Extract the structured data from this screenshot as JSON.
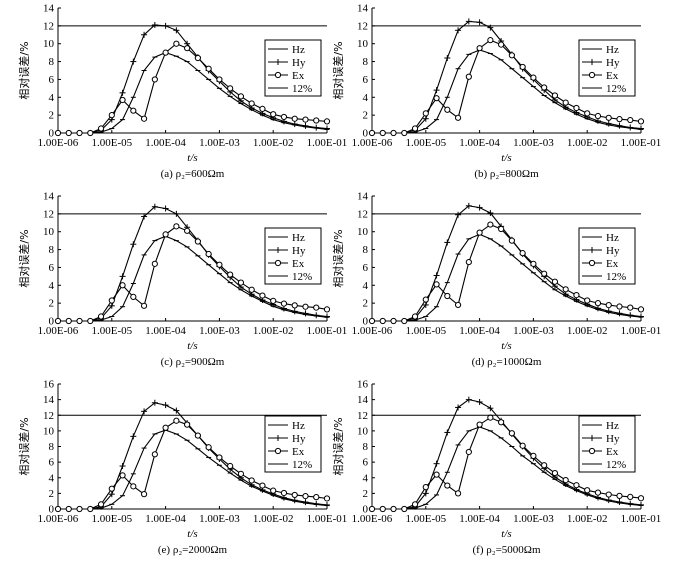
{
  "legend_labels": [
    "Hz",
    "Hy",
    "Ex",
    "12%"
  ],
  "chart_data": [
    {
      "type": "line",
      "panel_label": "(a) ρ₂=600Ωm",
      "xlabel": "t/s",
      "ylabel": "相对误差/%",
      "x_ticks": [
        "1.00E-06",
        "1.00E-05",
        "1.00E-04",
        "1.00E-03",
        "1.00E-02",
        "1.00E-01"
      ],
      "y_ticks": [
        0,
        2,
        4,
        6,
        8,
        10,
        12,
        14
      ],
      "ylim": [
        0,
        14
      ],
      "x": [
        -6,
        -5.8,
        -5.6,
        -5.4,
        -5.2,
        -5,
        -4.8,
        -4.6,
        -4.4,
        -4.2,
        -4,
        -3.8,
        -3.6,
        -3.4,
        -3.2,
        -3,
        -2.8,
        -2.6,
        -2.4,
        -2.2,
        -2,
        -1.8,
        -1.6,
        -1.4,
        -1.2,
        -1
      ],
      "series": [
        {
          "name": "Hz",
          "values": [
            0,
            0,
            0,
            0,
            0.1,
            0.5,
            1.5,
            4,
            7,
            8.5,
            9,
            8.6,
            8,
            7,
            6,
            5,
            4.1,
            3.3,
            2.6,
            2,
            1.5,
            1.15,
            0.9,
            0.7,
            0.55,
            0.4
          ]
        },
        {
          "name": "Hy",
          "values": [
            0,
            0,
            0,
            0,
            0.3,
            1.5,
            4.5,
            8,
            11,
            12.1,
            12,
            11.5,
            10,
            8.5,
            7,
            5.8,
            4.6,
            3.6,
            2.8,
            2.2,
            1.7,
            1.3,
            1,
            0.8,
            0.6,
            0.5
          ]
        },
        {
          "name": "Ex",
          "values": [
            0,
            0,
            0,
            0,
            0.5,
            2,
            3.7,
            2.5,
            1.6,
            6,
            9,
            10,
            9.5,
            8.4,
            7.2,
            6,
            5,
            4.1,
            3.3,
            2.7,
            2.1,
            1.8,
            1.6,
            1.5,
            1.4,
            1.3
          ]
        },
        {
          "name": "12%",
          "values": [
            12,
            12,
            12,
            12,
            12,
            12,
            12,
            12,
            12,
            12,
            12,
            12,
            12,
            12,
            12,
            12,
            12,
            12,
            12,
            12,
            12,
            12,
            12,
            12,
            12,
            12
          ]
        }
      ]
    },
    {
      "type": "line",
      "panel_label": "(b) ρ₂=800Ωm",
      "xlabel": "t/s",
      "ylabel": "相对误差/%",
      "x_ticks": [
        "1.00E-06",
        "1.00E-05",
        "1.00E-04",
        "1.00E-03",
        "1.00E-02",
        "1.00E-01"
      ],
      "y_ticks": [
        0,
        2,
        4,
        6,
        8,
        10,
        12,
        14
      ],
      "ylim": [
        0,
        14
      ],
      "x": [
        -6,
        -5.8,
        -5.6,
        -5.4,
        -5.2,
        -5,
        -4.8,
        -4.6,
        -4.4,
        -4.2,
        -4,
        -3.8,
        -3.6,
        -3.4,
        -3.2,
        -3,
        -2.8,
        -2.6,
        -2.4,
        -2.2,
        -2,
        -1.8,
        -1.6,
        -1.4,
        -1.2,
        -1
      ],
      "series": [
        {
          "name": "Hz",
          "values": [
            0,
            0,
            0,
            0,
            0.1,
            0.5,
            1.5,
            4,
            7.2,
            8.8,
            9.3,
            8.9,
            8.2,
            7.2,
            6.2,
            5.2,
            4.2,
            3.4,
            2.7,
            2.1,
            1.6,
            1.2,
            0.9,
            0.7,
            0.55,
            0.4
          ]
        },
        {
          "name": "Hy",
          "values": [
            0,
            0,
            0,
            0,
            0.3,
            1.6,
            4.8,
            8.4,
            11.5,
            12.5,
            12.4,
            11.8,
            10.3,
            8.8,
            7.2,
            6,
            4.8,
            3.7,
            2.9,
            2.3,
            1.8,
            1.35,
            1.05,
            0.82,
            0.62,
            0.5
          ]
        },
        {
          "name": "Ex",
          "values": [
            0,
            0,
            0,
            0,
            0.5,
            2.2,
            3.9,
            2.6,
            1.7,
            6.3,
            9.5,
            10.4,
            9.9,
            8.7,
            7.4,
            6.2,
            5.1,
            4.2,
            3.4,
            2.8,
            2.2,
            1.9,
            1.7,
            1.55,
            1.45,
            1.3
          ]
        },
        {
          "name": "12%",
          "values": [
            12,
            12,
            12,
            12,
            12,
            12,
            12,
            12,
            12,
            12,
            12,
            12,
            12,
            12,
            12,
            12,
            12,
            12,
            12,
            12,
            12,
            12,
            12,
            12,
            12,
            12
          ]
        }
      ]
    },
    {
      "type": "line",
      "panel_label": "(c) ρ₂=900Ωm",
      "xlabel": "t/s",
      "ylabel": "相对误差/%",
      "x_ticks": [
        "1.00E-06",
        "1.00E-05",
        "1.00E-04",
        "1.00E-03",
        "1.00E-02",
        "1.00E-01"
      ],
      "y_ticks": [
        0,
        2,
        4,
        6,
        8,
        10,
        12,
        14
      ],
      "ylim": [
        0,
        14
      ],
      "x": [
        -6,
        -5.8,
        -5.6,
        -5.4,
        -5.2,
        -5,
        -4.8,
        -4.6,
        -4.4,
        -4.2,
        -4,
        -3.8,
        -3.6,
        -3.4,
        -3.2,
        -3,
        -2.8,
        -2.6,
        -2.4,
        -2.2,
        -2,
        -1.8,
        -1.6,
        -1.4,
        -1.2,
        -1
      ],
      "series": [
        {
          "name": "Hz",
          "values": [
            0,
            0,
            0,
            0,
            0.1,
            0.5,
            1.6,
            4.2,
            7.4,
            9,
            9.5,
            9,
            8.3,
            7.3,
            6.3,
            5.3,
            4.3,
            3.5,
            2.8,
            2.2,
            1.65,
            1.25,
            0.95,
            0.72,
            0.56,
            0.42
          ]
        },
        {
          "name": "Hy",
          "values": [
            0,
            0,
            0,
            0,
            0.3,
            1.7,
            5,
            8.6,
            11.7,
            12.8,
            12.6,
            12,
            10.5,
            9,
            7.4,
            6.1,
            4.9,
            3.8,
            3,
            2.35,
            1.85,
            1.4,
            1.08,
            0.85,
            0.64,
            0.5
          ]
        },
        {
          "name": "Ex",
          "values": [
            0,
            0,
            0,
            0,
            0.5,
            2.3,
            4,
            2.7,
            1.7,
            6.4,
            9.7,
            10.6,
            10.1,
            8.9,
            7.5,
            6.3,
            5.2,
            4.3,
            3.5,
            2.85,
            2.25,
            1.95,
            1.75,
            1.6,
            1.5,
            1.3
          ]
        },
        {
          "name": "12%",
          "values": [
            12,
            12,
            12,
            12,
            12,
            12,
            12,
            12,
            12,
            12,
            12,
            12,
            12,
            12,
            12,
            12,
            12,
            12,
            12,
            12,
            12,
            12,
            12,
            12,
            12,
            12
          ]
        }
      ]
    },
    {
      "type": "line",
      "panel_label": "(d) ρ₂=1000Ωm",
      "xlabel": "t/s",
      "ylabel": "相对误差/%",
      "x_ticks": [
        "1.00E-06",
        "1.00E-05",
        "1.00E-04",
        "1.00E-03",
        "1.00E-02",
        "1.00E-01"
      ],
      "y_ticks": [
        0,
        2,
        4,
        6,
        8,
        10,
        12,
        14
      ],
      "ylim": [
        0,
        14
      ],
      "x": [
        -6,
        -5.8,
        -5.6,
        -5.4,
        -5.2,
        -5,
        -4.8,
        -4.6,
        -4.4,
        -4.2,
        -4,
        -3.8,
        -3.6,
        -3.4,
        -3.2,
        -3,
        -2.8,
        -2.6,
        -2.4,
        -2.2,
        -2,
        -1.8,
        -1.6,
        -1.4,
        -1.2,
        -1
      ],
      "series": [
        {
          "name": "Hz",
          "values": [
            0,
            0,
            0,
            0,
            0.1,
            0.5,
            1.6,
            4.3,
            7.5,
            9.2,
            9.7,
            9.2,
            8.4,
            7.4,
            6.4,
            5.4,
            4.4,
            3.5,
            2.8,
            2.2,
            1.7,
            1.28,
            0.96,
            0.73,
            0.57,
            0.43
          ]
        },
        {
          "name": "Hy",
          "values": [
            0,
            0,
            0,
            0,
            0.3,
            1.8,
            5.1,
            8.8,
            11.9,
            12.9,
            12.7,
            12.1,
            10.6,
            9.1,
            7.5,
            6.2,
            5,
            3.9,
            3,
            2.4,
            1.88,
            1.42,
            1.1,
            0.86,
            0.65,
            0.5
          ]
        },
        {
          "name": "Ex",
          "values": [
            0,
            0,
            0,
            0,
            0.5,
            2.4,
            4.1,
            2.8,
            1.8,
            6.6,
            9.9,
            10.8,
            10.3,
            9,
            7.6,
            6.4,
            5.3,
            4.4,
            3.55,
            2.9,
            2.3,
            2,
            1.78,
            1.62,
            1.5,
            1.3
          ]
        },
        {
          "name": "12%",
          "values": [
            12,
            12,
            12,
            12,
            12,
            12,
            12,
            12,
            12,
            12,
            12,
            12,
            12,
            12,
            12,
            12,
            12,
            12,
            12,
            12,
            12,
            12,
            12,
            12,
            12,
            12
          ]
        }
      ]
    },
    {
      "type": "line",
      "panel_label": "(e) ρ₂=2000Ωm",
      "xlabel": "t/s",
      "ylabel": "相对误差/%",
      "x_ticks": [
        "1.00E-06",
        "1.00E-05",
        "1.00E-04",
        "1.00E-03",
        "1.00E-02",
        "1.00E-01"
      ],
      "y_ticks": [
        0,
        2,
        4,
        6,
        8,
        10,
        12,
        14,
        16
      ],
      "ylim": [
        0,
        16
      ],
      "x": [
        -6,
        -5.8,
        -5.6,
        -5.4,
        -5.2,
        -5,
        -4.8,
        -4.6,
        -4.4,
        -4.2,
        -4,
        -3.8,
        -3.6,
        -3.4,
        -3.2,
        -3,
        -2.8,
        -2.6,
        -2.4,
        -2.2,
        -2,
        -1.8,
        -1.6,
        -1.4,
        -1.2,
        -1
      ],
      "series": [
        {
          "name": "Hz",
          "values": [
            0,
            0,
            0,
            0,
            0.1,
            0.6,
            1.7,
            4.5,
            7.8,
            9.6,
            10.1,
            9.6,
            8.8,
            7.7,
            6.6,
            5.6,
            4.6,
            3.7,
            2.9,
            2.3,
            1.75,
            1.3,
            1,
            0.75,
            0.58,
            0.44
          ]
        },
        {
          "name": "Hy",
          "values": [
            0,
            0,
            0,
            0,
            0.3,
            1.9,
            5.5,
            9.3,
            12.5,
            13.6,
            13.3,
            12.6,
            11,
            9.4,
            7.8,
            6.4,
            5.1,
            4,
            3.1,
            2.45,
            1.92,
            1.45,
            1.12,
            0.88,
            0.66,
            0.52
          ]
        },
        {
          "name": "Ex",
          "values": [
            0,
            0,
            0,
            0,
            0.6,
            2.6,
            4.3,
            2.9,
            1.9,
            7,
            10.4,
            11.3,
            10.8,
            9.4,
            7.9,
            6.6,
            5.5,
            4.5,
            3.65,
            3,
            2.35,
            2.05,
            1.8,
            1.65,
            1.52,
            1.35
          ]
        },
        {
          "name": "12%",
          "values": [
            12,
            12,
            12,
            12,
            12,
            12,
            12,
            12,
            12,
            12,
            12,
            12,
            12,
            12,
            12,
            12,
            12,
            12,
            12,
            12,
            12,
            12,
            12,
            12,
            12,
            12
          ]
        }
      ]
    },
    {
      "type": "line",
      "panel_label": "(f) ρ₂=5000Ωm",
      "xlabel": "t/s",
      "ylabel": "相对误差/%",
      "x_ticks": [
        "1.00E-06",
        "1.00E-05",
        "1.00E-04",
        "1.00E-03",
        "1.00E-02",
        "1.00E-01"
      ],
      "y_ticks": [
        0,
        2,
        4,
        6,
        8,
        10,
        12,
        14,
        16
      ],
      "ylim": [
        0,
        16
      ],
      "x": [
        -6,
        -5.8,
        -5.6,
        -5.4,
        -5.2,
        -5,
        -4.8,
        -4.6,
        -4.4,
        -4.2,
        -4,
        -3.8,
        -3.6,
        -3.4,
        -3.2,
        -3,
        -2.8,
        -2.6,
        -2.4,
        -2.2,
        -2,
        -1.8,
        -1.6,
        -1.4,
        -1.2,
        -1
      ],
      "series": [
        {
          "name": "Hz",
          "values": [
            0,
            0,
            0,
            0,
            0.1,
            0.6,
            1.8,
            4.7,
            8.2,
            10,
            10.5,
            10,
            9.1,
            8,
            6.8,
            5.8,
            4.7,
            3.8,
            3,
            2.35,
            1.8,
            1.35,
            1.02,
            0.77,
            0.6,
            0.45
          ]
        },
        {
          "name": "Hy",
          "values": [
            0,
            0,
            0,
            0,
            0.3,
            2,
            5.8,
            9.8,
            13,
            14,
            13.7,
            12.9,
            11.3,
            9.6,
            8,
            6.5,
            5.2,
            4.1,
            3.2,
            2.5,
            1.95,
            1.48,
            1.14,
            0.9,
            0.68,
            0.53
          ]
        },
        {
          "name": "Ex",
          "values": [
            0,
            0,
            0,
            0,
            0.6,
            2.8,
            4.4,
            3,
            2,
            7.3,
            10.8,
            11.7,
            11.1,
            9.7,
            8.1,
            6.8,
            5.6,
            4.6,
            3.7,
            3.05,
            2.4,
            2.1,
            1.85,
            1.68,
            1.55,
            1.38
          ]
        },
        {
          "name": "12%",
          "values": [
            12,
            12,
            12,
            12,
            12,
            12,
            12,
            12,
            12,
            12,
            12,
            12,
            12,
            12,
            12,
            12,
            12,
            12,
            12,
            12,
            12,
            12,
            12,
            12,
            12,
            12
          ]
        }
      ]
    }
  ]
}
